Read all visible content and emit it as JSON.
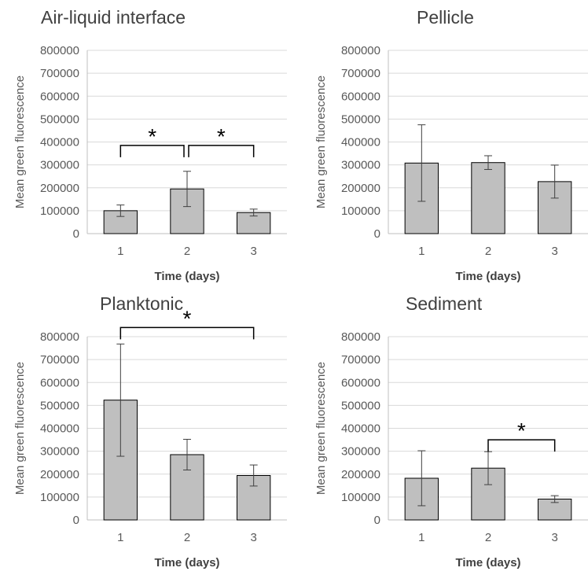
{
  "chart_data": [
    {
      "type": "bar",
      "title": "Air-liquid interface",
      "ylabel": "Mean green fluorescence",
      "xlabel": "Time (days)",
      "categories": [
        "1",
        "2",
        "3"
      ],
      "values": [
        100000,
        195000,
        92000
      ],
      "error": [
        25000,
        77000,
        15000
      ],
      "ylim": [
        0,
        800000
      ],
      "yticks": [
        "0",
        "100000",
        "200000",
        "300000",
        "400000",
        "500000",
        "600000",
        "700000",
        "800000"
      ],
      "grid": true,
      "significance": [
        {
          "from": 0,
          "to": 1,
          "label": "*"
        },
        {
          "from": 1,
          "to": 2,
          "label": "*"
        }
      ]
    },
    {
      "type": "bar",
      "title": "Pellicle",
      "ylabel": "Mean green fluorescence",
      "xlabel": "Time (days)",
      "categories": [
        "1",
        "2",
        "3"
      ],
      "values": [
        308000,
        310000,
        227000
      ],
      "error": [
        167000,
        30000,
        72000
      ],
      "ylim": [
        0,
        800000
      ],
      "yticks": [
        "0",
        "100000",
        "200000",
        "300000",
        "400000",
        "500000",
        "600000",
        "700000",
        "800000"
      ],
      "grid": true,
      "significance": []
    },
    {
      "type": "bar",
      "title": "Planktonic",
      "ylabel": "Mean green fluorescence",
      "xlabel": "Time (days)",
      "categories": [
        "1",
        "2",
        "3"
      ],
      "values": [
        523000,
        285000,
        194000
      ],
      "error": [
        245000,
        67000,
        46000
      ],
      "ylim": [
        0,
        800000
      ],
      "yticks": [
        "0",
        "100000",
        "200000",
        "300000",
        "400000",
        "500000",
        "600000",
        "700000",
        "800000"
      ],
      "grid": true,
      "significance": [
        {
          "from": 0,
          "to": 2,
          "label": "*"
        }
      ]
    },
    {
      "type": "bar",
      "title": "Sediment",
      "ylabel": "Mean green fluorescence",
      "xlabel": "Time (days)",
      "categories": [
        "1",
        "2",
        "3"
      ],
      "values": [
        182000,
        226000,
        91000
      ],
      "error": [
        120000,
        72000,
        15000
      ],
      "ylim": [
        0,
        800000
      ],
      "yticks": [
        "0",
        "100000",
        "200000",
        "300000",
        "400000",
        "500000",
        "600000",
        "700000",
        "800000"
      ],
      "grid": true,
      "significance": [
        {
          "from": 1,
          "to": 2,
          "label": "*"
        }
      ]
    }
  ]
}
